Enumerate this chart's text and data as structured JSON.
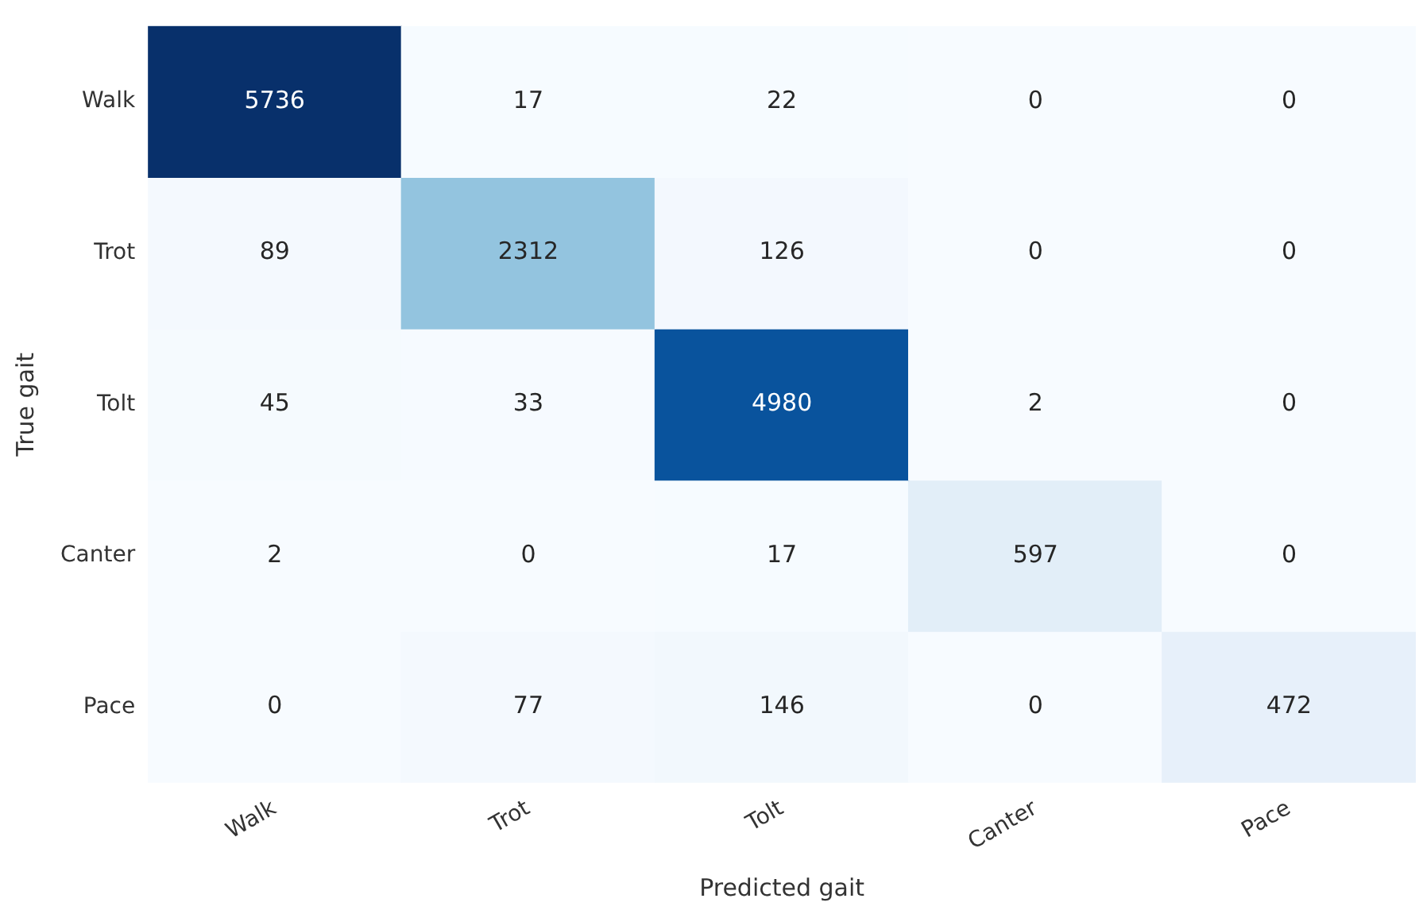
{
  "chart_data": {
    "type": "heatmap",
    "xlabel": "Predicted gait",
    "ylabel": "True gait",
    "categories": [
      "Walk",
      "Trot",
      "Tolt",
      "Canter",
      "Pace"
    ],
    "y_categories": [
      "Walk",
      "Trot",
      "Tolt",
      "Canter",
      "Pace"
    ],
    "cells": [
      [
        5736,
        17,
        22,
        0,
        0
      ],
      [
        89,
        2312,
        126,
        0,
        0
      ],
      [
        45,
        33,
        4980,
        2,
        0
      ],
      [
        2,
        0,
        17,
        597,
        0
      ],
      [
        0,
        77,
        146,
        0,
        472
      ]
    ],
    "data_labels": true,
    "grid": false,
    "legend": false
  }
}
